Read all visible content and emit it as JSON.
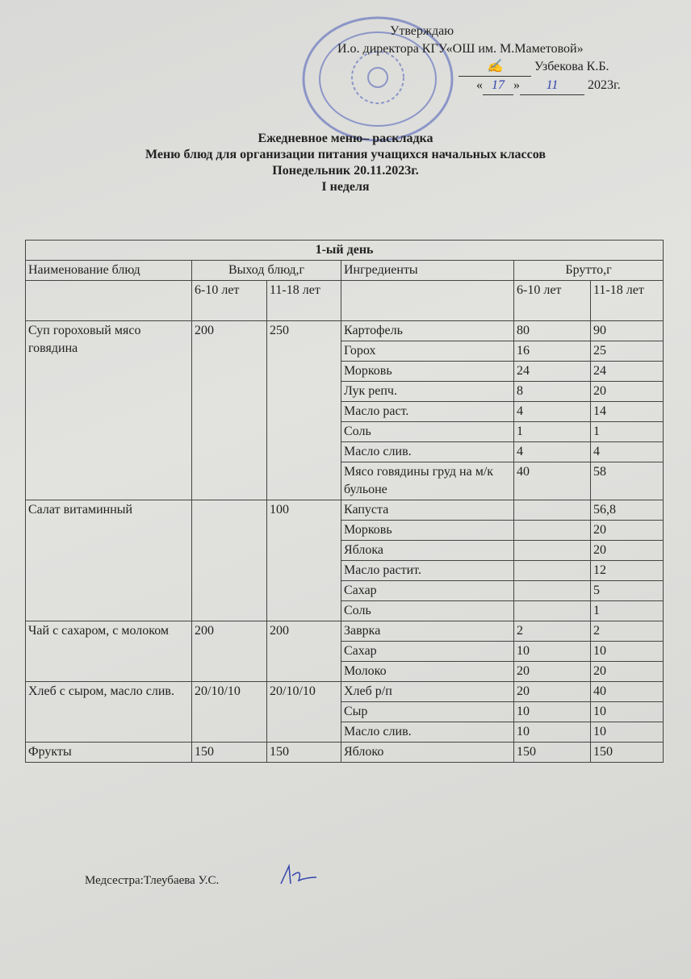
{
  "approval": {
    "line1": "Утверждаю",
    "line2": "И.о. директора  КГУ«ОШ им. М.Маметовой»",
    "signer": "Узбекова К.Б.",
    "day": "17",
    "month": "11",
    "year": "2023г."
  },
  "titles": {
    "t1": "Ежедневное меню– раскладка",
    "t2": "Меню блюд для организации питания учащихся начальных классов",
    "t3": "Понедельник 20.11.2023г.",
    "t4": "I неделя"
  },
  "table": {
    "day": "1-ый день",
    "headers": {
      "dish": "Наименование блюд",
      "yield": "Выход блюд,г",
      "ingredients": "Ингредиенты",
      "gross": "Брутто,г"
    },
    "sub": {
      "a": "6-10 лет",
      "b": "11-18 лет"
    },
    "dishes": [
      {
        "name": "Суп гороховый  мясо говядина",
        "y1": "200",
        "y2": "250",
        "items": [
          [
            "Картофель",
            "80",
            "90"
          ],
          [
            "Горох",
            "16",
            "25"
          ],
          [
            "Морковь",
            "24",
            "24"
          ],
          [
            "Лук репч.",
            "8",
            "20"
          ],
          [
            "Масло раст.",
            "4",
            "14"
          ],
          [
            "Соль",
            "1",
            "1"
          ],
          [
            "Масло слив.",
            "4",
            "4"
          ],
          [
            "Мясо говядины груд на м/к бульоне",
            "40",
            "58"
          ]
        ]
      },
      {
        "name": "Салат витаминный",
        "y1": "",
        "y2": "100",
        "items": [
          [
            "Капуста",
            "",
            "56,8"
          ],
          [
            "Морковь",
            "",
            "20"
          ],
          [
            "Яблока",
            "",
            "20"
          ],
          [
            "Масло растит.",
            "",
            "12"
          ],
          [
            "Сахар",
            "",
            "5"
          ],
          [
            "Соль",
            "",
            "1"
          ]
        ]
      },
      {
        "name": "Чай с сахаром, с молоком",
        "y1": "200",
        "y2": "200",
        "items": [
          [
            "Заврка",
            "2",
            "2"
          ],
          [
            "Сахар",
            "10",
            "10"
          ],
          [
            "Молоко",
            "20",
            "20"
          ]
        ]
      },
      {
        "name": "Хлеб с сыром, масло слив.",
        "y1": "20/10/10",
        "y2": "20/10/10",
        "items": [
          [
            "Хлеб р/п",
            "20",
            "40"
          ],
          [
            "Сыр",
            "10",
            "10"
          ],
          [
            "Масло слив.",
            "10",
            "10"
          ]
        ]
      },
      {
        "name": "Фрукты",
        "y1": "150",
        "y2": "150",
        "items": [
          [
            "Яблоко",
            "150",
            "150"
          ]
        ]
      }
    ]
  },
  "footer": {
    "nurse": "Медсестра:Тлеубаева У.С."
  }
}
